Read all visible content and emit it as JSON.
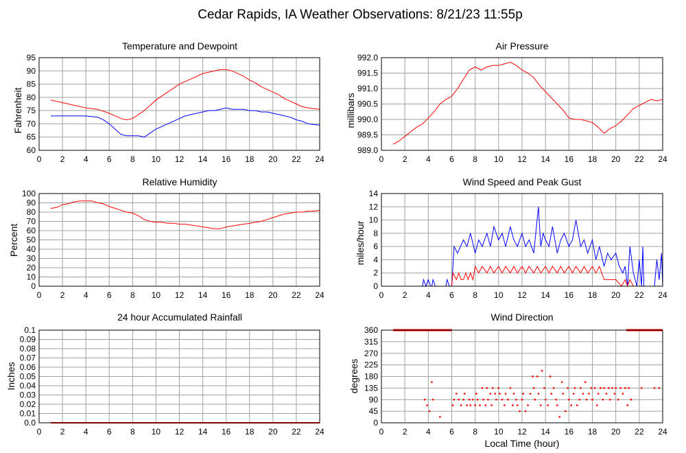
{
  "title": "Cedar Rapids, IA Weather Observations: 8/21/23 11:55p",
  "colors": {
    "red": "#ff0000",
    "blue": "#0000ff",
    "grid": "#a0a0a0",
    "axis": "#000000"
  },
  "chart_data": [
    {
      "id": "temp",
      "type": "line",
      "title": "Temperature and Dewpoint",
      "ylabel": "Fahrenheit",
      "xlabel": "",
      "xlim": [
        0,
        24
      ],
      "ylim": [
        60,
        95
      ],
      "xticks": [
        0,
        2,
        4,
        6,
        8,
        10,
        12,
        14,
        16,
        18,
        20,
        22,
        24
      ],
      "yticks": [
        60,
        65,
        70,
        75,
        80,
        85,
        90,
        95
      ],
      "series": [
        {
          "color": "#ff0000",
          "x": [
            1,
            2,
            3,
            4,
            5,
            6,
            6.5,
            7,
            7.5,
            8,
            8.5,
            9,
            9.5,
            10,
            10.5,
            11,
            11.5,
            12,
            12.5,
            13,
            13.5,
            14,
            14.5,
            15,
            15.5,
            16,
            16.5,
            17,
            17.5,
            18,
            18.5,
            19,
            19.5,
            20,
            20.5,
            21,
            21.5,
            22,
            22.5,
            23,
            24
          ],
          "y": [
            79,
            78,
            77,
            76,
            75.5,
            74,
            73,
            72,
            71.5,
            72,
            73.5,
            75,
            77,
            79,
            80.5,
            82,
            83.5,
            85,
            86,
            87,
            88,
            89,
            89.5,
            90,
            90.5,
            90.5,
            90,
            89,
            88,
            86.5,
            85.5,
            84,
            83,
            82,
            81,
            79.5,
            78.5,
            77.5,
            76.5,
            76,
            75.5
          ]
        },
        {
          "color": "#0000ff",
          "x": [
            1,
            2,
            3,
            4,
            5,
            5.5,
            6,
            6.5,
            7,
            7.5,
            8,
            8.5,
            9,
            9.5,
            10,
            10.5,
            11,
            11.5,
            12,
            12.5,
            13,
            13.5,
            14,
            14.5,
            15,
            15.5,
            16,
            16.5,
            17,
            17.5,
            18,
            18.5,
            19,
            19.5,
            20,
            20.5,
            21,
            21.5,
            22,
            22.5,
            23,
            24
          ],
          "y": [
            73,
            73,
            73,
            73,
            72.5,
            71.5,
            70,
            68,
            66,
            65.5,
            65.5,
            65.5,
            65,
            66.5,
            68,
            69,
            70,
            71,
            72,
            73,
            73.5,
            74,
            74.5,
            75,
            75,
            75.5,
            76,
            75.5,
            75.5,
            75.5,
            75,
            75,
            74.5,
            74.5,
            74,
            73.5,
            73,
            72.5,
            71.5,
            71,
            70,
            69.5
          ]
        }
      ]
    },
    {
      "id": "pressure",
      "type": "line",
      "title": "Air Pressure",
      "ylabel": "millibars",
      "xlabel": "",
      "xlim": [
        0,
        24
      ],
      "ylim": [
        989.0,
        992.0
      ],
      "xticks": [
        0,
        2,
        4,
        6,
        8,
        10,
        12,
        14,
        16,
        18,
        20,
        22,
        24
      ],
      "yticks": [
        "989.0",
        "989.5",
        "990.0",
        "990.5",
        "991.0",
        "991.5",
        "992.0"
      ],
      "series": [
        {
          "color": "#ff0000",
          "x": [
            1,
            1.5,
            2,
            2.5,
            3,
            3.5,
            4,
            4.5,
            5,
            5.5,
            6,
            6.5,
            7,
            7.5,
            8,
            8.5,
            9,
            9.5,
            10,
            10.5,
            11,
            11.5,
            12,
            12.5,
            13,
            13.5,
            14,
            14.5,
            15,
            15.5,
            16,
            16.5,
            17,
            17.5,
            18,
            18.5,
            19,
            19.5,
            20,
            20.5,
            21,
            21.5,
            22,
            22.5,
            23,
            23.5,
            24
          ],
          "y": [
            989.2,
            989.3,
            989.45,
            989.6,
            989.75,
            989.85,
            990.05,
            990.25,
            990.5,
            990.65,
            990.75,
            991.0,
            991.3,
            991.6,
            991.7,
            991.6,
            991.7,
            991.75,
            991.75,
            991.8,
            991.85,
            991.75,
            991.6,
            991.5,
            991.35,
            991.1,
            990.9,
            990.7,
            990.5,
            990.3,
            990.05,
            990.0,
            990.0,
            989.95,
            989.9,
            989.75,
            989.55,
            989.7,
            989.8,
            989.95,
            990.15,
            990.35,
            990.45,
            990.55,
            990.65,
            990.6,
            990.65
          ]
        }
      ]
    },
    {
      "id": "humidity",
      "type": "line",
      "title": "Relative Humidity",
      "ylabel": "Percent",
      "xlabel": "",
      "xlim": [
        0,
        24
      ],
      "ylim": [
        0,
        100
      ],
      "xticks": [
        0,
        2,
        4,
        6,
        8,
        10,
        12,
        14,
        16,
        18,
        20,
        22,
        24
      ],
      "yticks": [
        0,
        10,
        20,
        30,
        40,
        50,
        60,
        70,
        80,
        90,
        100
      ],
      "series": [
        {
          "color": "#ff0000",
          "x": [
            1,
            1.5,
            2,
            2.5,
            3,
            3.5,
            4,
            4.5,
            5,
            5.5,
            6,
            6.5,
            7,
            7.5,
            8,
            8.5,
            9,
            9.5,
            10,
            10.5,
            11,
            11.5,
            12,
            12.5,
            13,
            13.5,
            14,
            14.5,
            15,
            15.5,
            16,
            16.5,
            17,
            17.5,
            18,
            18.5,
            19,
            19.5,
            20,
            20.5,
            21,
            21.5,
            22,
            22.5,
            23,
            23.5,
            24
          ],
          "y": [
            84,
            85,
            88,
            89,
            91,
            92,
            92,
            92,
            90,
            89,
            86,
            84,
            82,
            80,
            79,
            76,
            72,
            70,
            69,
            69,
            68,
            68,
            67,
            67,
            66,
            65,
            64,
            63,
            62,
            62,
            64,
            65,
            66,
            67,
            68,
            69,
            70,
            72,
            74,
            76,
            78,
            79,
            80,
            80,
            81,
            81,
            82
          ]
        }
      ]
    },
    {
      "id": "wind",
      "type": "line",
      "title": "Wind Speed and Peak Gust",
      "ylabel": "miles/hour",
      "xlabel": "",
      "xlim": [
        0,
        24
      ],
      "ylim": [
        0,
        14
      ],
      "xticks": [
        0,
        2,
        4,
        6,
        8,
        10,
        12,
        14,
        16,
        18,
        20,
        22,
        24
      ],
      "yticks": [
        0,
        2,
        4,
        6,
        8,
        10,
        12,
        14
      ],
      "series": [
        {
          "color": "#0000ff",
          "x": [
            1,
            3.5,
            3.6,
            3.8,
            4.0,
            4.2,
            4.3,
            4.4,
            4.6,
            4.8,
            5.0,
            5.5,
            5.6,
            5.8,
            6.0,
            6.2,
            6.5,
            7.0,
            7.3,
            7.6,
            8.0,
            8.3,
            8.6,
            9.0,
            9.3,
            9.6,
            10.0,
            10.3,
            10.6,
            11.0,
            11.3,
            11.6,
            12.0,
            12.3,
            12.6,
            13.0,
            13.4,
            13.6,
            13.8,
            14.0,
            14.3,
            14.6,
            15.0,
            15.3,
            15.6,
            16.0,
            16.3,
            16.6,
            17.0,
            17.3,
            17.6,
            18.0,
            18.3,
            18.6,
            19.0,
            19.3,
            19.6,
            20.0,
            20.3,
            20.6,
            20.8,
            21.0,
            21.2,
            21.5,
            21.8,
            22.0,
            22.2,
            22.3,
            22.4,
            22.8,
            23.3,
            23.5,
            23.7,
            23.9,
            24
          ],
          "y": [
            0,
            0,
            1,
            0,
            1,
            0,
            0,
            1,
            0,
            0,
            0,
            0,
            1,
            0,
            0,
            6,
            5,
            7,
            6,
            8,
            5,
            7,
            6,
            8,
            6,
            9,
            7,
            8,
            6,
            9,
            7,
            6,
            8,
            6,
            7,
            5,
            12,
            6,
            8,
            7,
            6,
            9,
            5,
            7,
            8,
            6,
            7,
            10,
            6,
            7,
            5,
            7,
            4,
            6,
            3,
            5,
            4,
            5,
            3,
            2,
            3,
            0,
            6,
            2,
            0,
            4,
            0,
            6,
            0,
            0,
            0,
            4,
            1,
            5,
            0
          ]
        },
        {
          "color": "#ff0000",
          "x": [
            1,
            6.0,
            6.1,
            6.4,
            6.6,
            6.8,
            7.0,
            7.2,
            7.4,
            7.6,
            7.8,
            8.0,
            8.3,
            8.6,
            9.0,
            9.3,
            9.6,
            10.0,
            10.3,
            10.6,
            11.0,
            11.3,
            11.6,
            12.0,
            12.3,
            12.6,
            13.0,
            13.3,
            13.6,
            14.0,
            14.3,
            14.6,
            15.0,
            15.3,
            15.6,
            16.0,
            16.3,
            16.6,
            17.0,
            17.3,
            17.6,
            18.0,
            18.3,
            18.6,
            19.0,
            19.5,
            20.0,
            20.5,
            20.8,
            21.0,
            21.2,
            21.5,
            22.0,
            24
          ],
          "y": [
            0,
            0,
            2,
            1,
            2,
            1,
            1,
            2,
            1,
            2,
            1,
            3,
            2,
            3,
            2,
            3,
            2,
            3,
            2,
            3,
            2,
            3,
            2,
            3,
            2,
            3,
            2,
            3,
            2,
            3,
            2,
            3,
            2,
            3,
            2,
            3,
            2,
            3,
            2,
            3,
            2,
            3,
            2,
            3,
            1,
            1,
            1,
            0,
            1,
            0,
            1,
            0,
            0,
            0
          ]
        }
      ]
    },
    {
      "id": "rain",
      "type": "line",
      "title": "24 hour Accumulated Rainfall",
      "ylabel": "Inches",
      "xlabel": "",
      "xlim": [
        0,
        24
      ],
      "ylim": [
        0,
        0.1
      ],
      "xticks": [
        0,
        2,
        4,
        6,
        8,
        10,
        12,
        14,
        16,
        18,
        20,
        22,
        24
      ],
      "yticks": [
        "0.0",
        "0.01",
        "0.02",
        "0.03",
        "0.04",
        "0.05",
        "0.06",
        "0.07",
        "0.08",
        "0.09",
        "0.1"
      ],
      "series": [
        {
          "color": "#ff0000",
          "x": [
            1,
            24
          ],
          "y": [
            0,
            0
          ]
        }
      ]
    },
    {
      "id": "direction",
      "type": "scatter",
      "title": "Wind Direction",
      "ylabel": "degrees",
      "xlabel": "Local Time (hour)",
      "xlim": [
        0,
        24
      ],
      "ylim": [
        0,
        360
      ],
      "xticks": [
        0,
        2,
        4,
        6,
        8,
        10,
        12,
        14,
        16,
        18,
        20,
        22,
        24
      ],
      "yticks": [
        0,
        45,
        90,
        135,
        180,
        225,
        270,
        315,
        360
      ],
      "series": [
        {
          "color": "#ff0000",
          "x": [
            3.7,
            3.9,
            4.1,
            4.3,
            4.4,
            5.0,
            6.1,
            6.2,
            6.4,
            6.6,
            6.8,
            7.0,
            7.1,
            7.3,
            7.5,
            7.6,
            7.8,
            8.0,
            8.1,
            8.2,
            8.4,
            8.6,
            8.7,
            8.9,
            9.0,
            9.1,
            9.3,
            9.4,
            9.5,
            9.7,
            9.8,
            10.0,
            10.1,
            10.3,
            10.5,
            10.6,
            10.8,
            11.0,
            11.2,
            11.3,
            11.5,
            11.6,
            11.8,
            12.0,
            12.1,
            12.3,
            12.5,
            12.7,
            12.9,
            13.0,
            13.1,
            13.3,
            13.4,
            13.6,
            13.7,
            13.9,
            14.0,
            14.2,
            14.4,
            14.5,
            14.7,
            14.9,
            15.0,
            15.2,
            15.4,
            15.5,
            15.7,
            15.9,
            16.0,
            16.2,
            16.4,
            16.5,
            16.7,
            16.9,
            17.0,
            17.2,
            17.4,
            17.5,
            17.7,
            17.9,
            18.0,
            18.2,
            18.4,
            18.5,
            18.7,
            18.9,
            19.0,
            19.2,
            19.4,
            19.5,
            19.7,
            19.9,
            20.0,
            20.2,
            20.4,
            20.6,
            20.8,
            21.0,
            21.1,
            21.3,
            22.2,
            23.3,
            23.7
          ],
          "y": [
            90,
            68,
            45,
            158,
            90,
            23,
            68,
            90,
            113,
            90,
            68,
            90,
            113,
            68,
            90,
            68,
            90,
            68,
            113,
            90,
            68,
            135,
            90,
            68,
            135,
            90,
            113,
            68,
            135,
            113,
            90,
            135,
            113,
            90,
            68,
            113,
            90,
            135,
            68,
            113,
            90,
            68,
            45,
            90,
            113,
            45,
            68,
            113,
            180,
            135,
            90,
            180,
            113,
            68,
            202,
            135,
            90,
            68,
            180,
            113,
            135,
            90,
            68,
            23,
            158,
            113,
            45,
            135,
            90,
            68,
            113,
            135,
            68,
            90,
            135,
            113,
            158,
            90,
            113,
            135,
            90,
            135,
            68,
            113,
            135,
            90,
            135,
            113,
            135,
            90,
            135,
            113,
            135,
            90,
            135,
            113,
            135,
            68,
            135,
            90,
            135,
            135,
            135
          ]
        },
        {
          "color": "#ff0000",
          "type": "segment",
          "x": [
            1.0,
            6.0
          ],
          "y": [
            360,
            360
          ]
        },
        {
          "color": "#ff0000",
          "type": "segment",
          "x": [
            20.9,
            24.0
          ],
          "y": [
            360,
            360
          ]
        }
      ]
    }
  ]
}
